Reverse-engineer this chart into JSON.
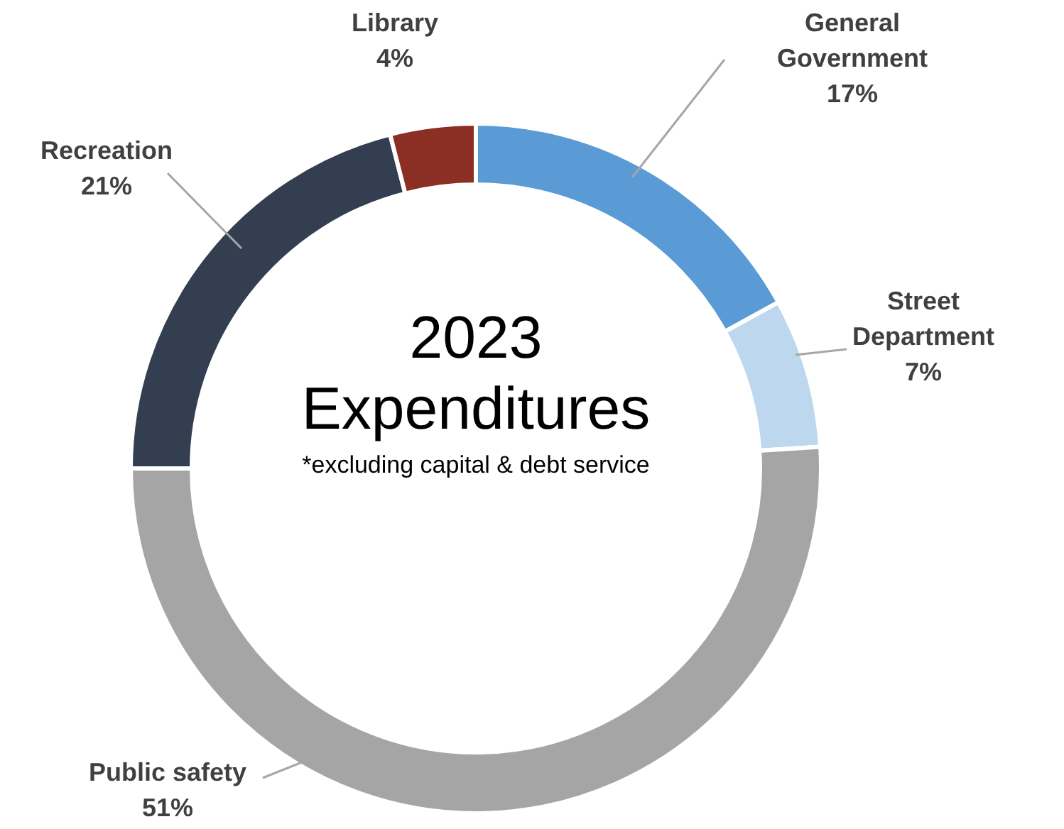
{
  "chart_data": {
    "type": "donut",
    "title": "2023 Expenditures",
    "subtitle": "*excluding capital & debt service",
    "categories": [
      "General Government",
      "Street Department",
      "Public safety",
      "Recreation",
      "Library"
    ],
    "values": [
      17,
      7,
      51,
      21,
      4
    ],
    "colors": [
      "#5b9bd5",
      "#bdd7ee",
      "#a5a5a5",
      "#333f50",
      "#8b2e24"
    ],
    "value_labels": [
      "17%",
      "7%",
      "51%",
      "21%",
      "4%"
    ]
  }
}
